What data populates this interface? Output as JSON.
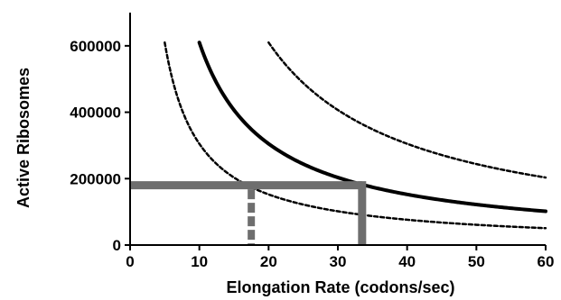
{
  "chart_data": {
    "type": "line",
    "xlabel": "Elongation Rate (codons/sec)",
    "ylabel": "Active Ribosomes",
    "xlim": [
      0,
      60
    ],
    "ylim": [
      0,
      700000
    ],
    "x_ticks": [
      "0",
      "10",
      "20",
      "30",
      "40",
      "50",
      "60"
    ],
    "y_ticks": [
      "0",
      "200000",
      "400000",
      "600000"
    ],
    "grid": false,
    "series": [
      {
        "style": "solid",
        "color": "#000000",
        "k": 6100000,
        "x_start": 10,
        "x_end": 60
      },
      {
        "style": "dashed",
        "color": "#000000",
        "k": 3050000,
        "x_start": 5,
        "x_end": 60
      },
      {
        "style": "dashed",
        "color": "#000000",
        "k": 12200000,
        "x_start": 20,
        "x_end": 60
      }
    ],
    "annotations": {
      "color": "#6e6e6e",
      "horizontal_line": {
        "y": 180000,
        "x_from": 0,
        "x_to": 33.5
      },
      "vertical_solid": {
        "x": 33.5,
        "y_from": 0,
        "y_to": 180000
      },
      "vertical_dashed": {
        "x": 17.5,
        "y_from": 0,
        "y_to": 180000
      }
    }
  }
}
